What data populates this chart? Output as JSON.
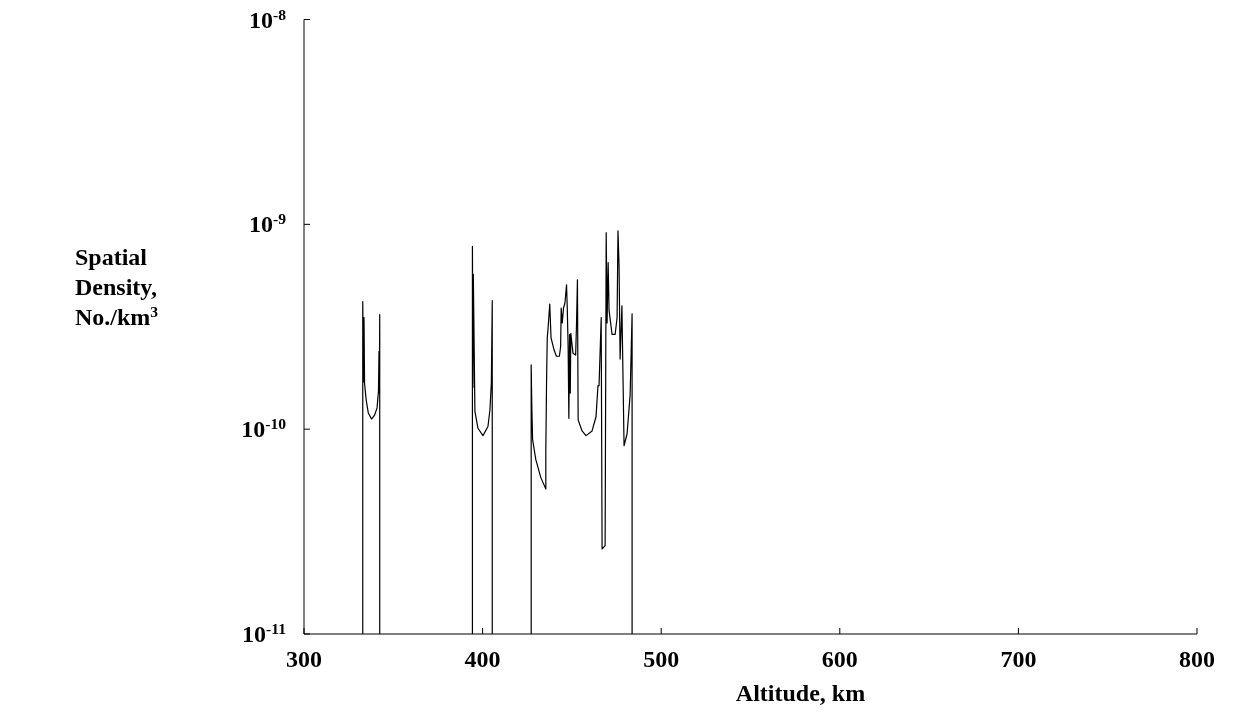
{
  "chart_data": {
    "type": "line",
    "xlabel": "Altitude, km",
    "ylabel": "Spatial Density, No./km$^{3}$",
    "log": "y",
    "xlim": [
      300,
      800
    ],
    "xticks": [
      300,
      400,
      500,
      600,
      700,
      800
    ],
    "ylim": [
      1e-11,
      1e-08
    ],
    "yticks": [
      {
        "value": 1e-11,
        "label": "10$^{-11}$"
      },
      {
        "value": 1e-10,
        "label": "10$^{-10}$"
      },
      {
        "value": 1e-09,
        "label": "10$^{-9}$"
      },
      {
        "value": 1e-08,
        "label": "10$^{-8}$"
      }
    ],
    "grid": false,
    "marker": "none",
    "line_style": "solid",
    "series": [
      {
        "color": "#000000",
        "x": [
          332.9,
          332.9,
          333.3,
          333.6,
          333.9,
          334.8,
          336.0,
          337.8,
          339.5,
          340.9,
          341.7,
          342.0,
          342.2,
          342.4,
          342.4,
          null,
          394.3,
          394.3,
          394.6,
          394.8,
          395.7,
          397.4,
          400.2,
          403.0,
          404.1,
          404.9,
          405.4,
          405.4,
          null,
          427.2,
          427.2,
          427.6,
          428.0,
          429.8,
          432.6,
          435.4,
          435.4,
          435.8,
          436.2,
          436.6,
          437.6,
          438.3,
          440.0,
          441.3,
          443.0,
          443.7,
          444.0,
          444.6,
          445.3,
          446.1,
          447.0,
          447.4,
          447.9,
          448.3,
          448.7,
          449.1,
          449.4,
          450.6,
          452.1,
          452.6,
          453.1,
          453.5,
          455.7,
          457.9,
          461.3,
          463.5,
          464.6,
          465.2,
          466.4,
          466.9,
          468.6,
          469.2,
          469.7,
          470.3,
          470.8,
          472.5,
          474.2,
          475.3,
          475.8,
          476.4,
          477.0,
          478.0,
          479.2,
          480.9,
          482.6,
          483.7,
          483.7
        ],
        "values": [
          1e-11,
          4.2e-10,
          1.7e-10,
          3.5e-10,
          1.68e-10,
          1.39e-10,
          1.2e-10,
          1.12e-10,
          1.17e-10,
          1.27e-10,
          1.53e-10,
          2.4e-10,
          1.5e-10,
          3.63e-10,
          1e-11,
          null,
          1e-11,
          7.8e-10,
          1.6e-10,
          5.7e-10,
          1.22e-10,
          1.01e-10,
          9.3e-11,
          1.03e-10,
          1.24e-10,
          1.68e-10,
          4.24e-10,
          1e-11,
          null,
          1e-11,
          2.06e-10,
          1.24e-10,
          8.9e-11,
          7.1e-11,
          5.8e-11,
          5.1e-11,
          7.9e-11,
          1.68e-10,
          2.8e-10,
          3.05e-10,
          4.08e-10,
          2.8e-10,
          2.44e-10,
          2.27e-10,
          2.27e-10,
          2.54e-10,
          3.9e-10,
          3.3e-10,
          3.9e-10,
          4.13e-10,
          5.07e-10,
          3.9e-10,
          2.49e-10,
          1.13e-10,
          2.9e-10,
          1.5e-10,
          2.94e-10,
          2.35e-10,
          2.3e-10,
          3.3e-10,
          5.36e-10,
          1.11e-10,
          9.8e-11,
          9.3e-11,
          9.8e-11,
          1.15e-10,
          1.63e-10,
          1.63e-10,
          3.5e-10,
          2.6e-11,
          2.7e-11,
          9.1e-10,
          3.3e-10,
          6.5e-10,
          3.8e-10,
          2.9e-10,
          2.9e-10,
          3.5e-10,
          9.3e-10,
          6.3e-10,
          2.2e-10,
          4e-10,
          8.3e-11,
          9.5e-11,
          1.47e-10,
          3.66e-10,
          1e-11
        ]
      }
    ]
  }
}
